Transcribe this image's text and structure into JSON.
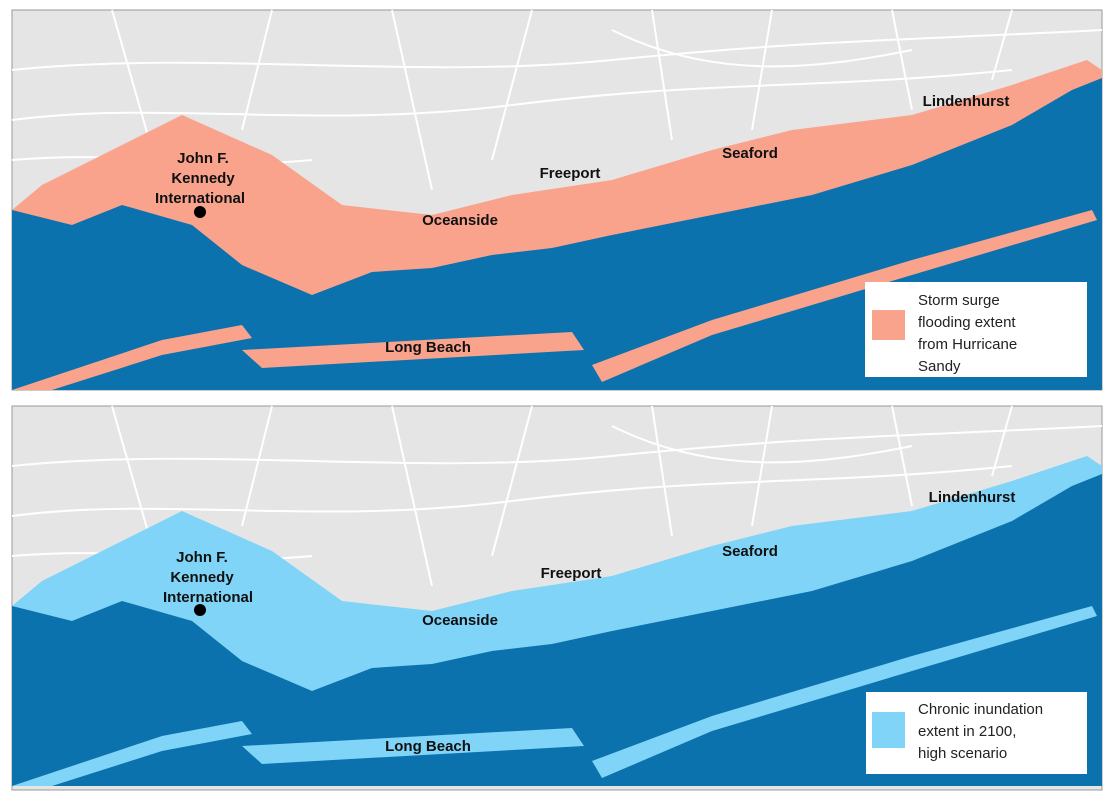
{
  "panels": [
    {
      "labels": [
        "John F.",
        "Kennedy",
        "International",
        "Oceanside",
        "Freeport",
        "Seaford",
        "Lindenhurst",
        "Long Beach"
      ],
      "legend": [
        "Storm surge",
        "flooding extent",
        "from Hurricane",
        "Sandy"
      ]
    },
    {
      "labels": [
        "John F.",
        "Kennedy",
        "International",
        "Oceanside",
        "Freeport",
        "Seaford",
        "Lindenhurst",
        "Long Beach"
      ],
      "legend": [
        "Chronic inundation",
        "extent in 2100,",
        "high scenario"
      ]
    }
  ]
}
